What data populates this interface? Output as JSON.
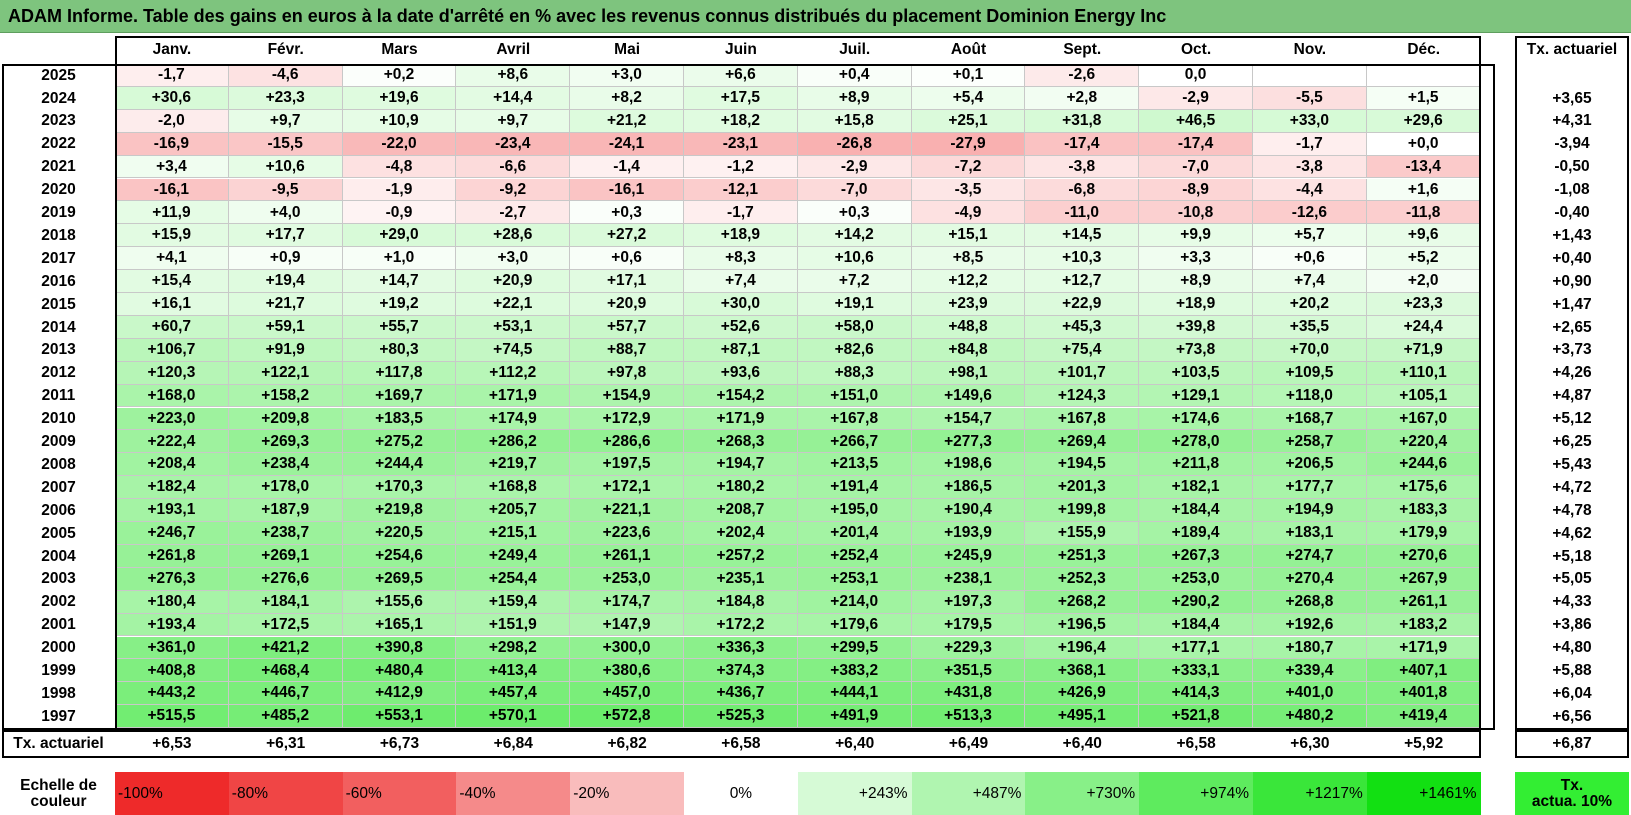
{
  "title": "ADAM Informe. Table des gains en euros à la date d'arrêté en % avec les revenus connus distribués du placement Dominion Energy Inc",
  "chart_data": {
    "type": "table",
    "columns": [
      "Janv.",
      "Févr.",
      "Mars",
      "Avril",
      "Mai",
      "Juin",
      "Juil.",
      "Août",
      "Sept.",
      "Oct.",
      "Nov.",
      "Déc."
    ],
    "ta_header": "Tx. actuariel",
    "rows": [
      {
        "year": "2025",
        "values": [
          "-1,7",
          "-4,6",
          "+0,2",
          "+8,6",
          "+3,0",
          "+6,6",
          "+0,4",
          "+0,1",
          "-2,6",
          "0,0",
          "",
          ""
        ],
        "ta": ""
      },
      {
        "year": "2024",
        "values": [
          "+30,6",
          "+23,3",
          "+19,6",
          "+14,4",
          "+8,2",
          "+17,5",
          "+8,9",
          "+5,4",
          "+2,8",
          "-2,9",
          "-5,5",
          "+1,5"
        ],
        "ta": "+3,65"
      },
      {
        "year": "2023",
        "values": [
          "-2,0",
          "+9,7",
          "+10,9",
          "+9,7",
          "+21,2",
          "+18,2",
          "+15,8",
          "+25,1",
          "+31,8",
          "+46,5",
          "+33,0",
          "+29,6"
        ],
        "ta": "+4,31"
      },
      {
        "year": "2022",
        "values": [
          "-16,9",
          "-15,5",
          "-22,0",
          "-23,4",
          "-24,1",
          "-23,1",
          "-26,8",
          "-27,9",
          "-17,4",
          "-17,4",
          "-1,7",
          "+0,0"
        ],
        "ta": "-3,94"
      },
      {
        "year": "2021",
        "values": [
          "+3,4",
          "+10,6",
          "-4,8",
          "-6,6",
          "-1,4",
          "-1,2",
          "-2,9",
          "-7,2",
          "-3,8",
          "-7,0",
          "-3,8",
          "-13,4"
        ],
        "ta": "-0,50"
      },
      {
        "year": "2020",
        "values": [
          "-16,1",
          "-9,5",
          "-1,9",
          "-9,2",
          "-16,1",
          "-12,1",
          "-7,0",
          "-3,5",
          "-6,8",
          "-8,9",
          "-4,4",
          "+1,6"
        ],
        "ta": "-1,08"
      },
      {
        "year": "2019",
        "values": [
          "+11,9",
          "+4,0",
          "-0,9",
          "-2,7",
          "+0,3",
          "-1,7",
          "+0,3",
          "-4,9",
          "-11,0",
          "-10,8",
          "-12,6",
          "-11,8"
        ],
        "ta": "-0,40"
      },
      {
        "year": "2018",
        "values": [
          "+15,9",
          "+17,7",
          "+29,0",
          "+28,6",
          "+27,2",
          "+18,9",
          "+14,2",
          "+15,1",
          "+14,5",
          "+9,9",
          "+5,7",
          "+9,6"
        ],
        "ta": "+1,43"
      },
      {
        "year": "2017",
        "values": [
          "+4,1",
          "+0,9",
          "+1,0",
          "+3,0",
          "+0,6",
          "+8,3",
          "+10,6",
          "+8,5",
          "+10,3",
          "+3,3",
          "+0,6",
          "+5,2"
        ],
        "ta": "+0,40"
      },
      {
        "year": "2016",
        "values": [
          "+15,4",
          "+19,4",
          "+14,7",
          "+20,9",
          "+17,1",
          "+7,4",
          "+7,2",
          "+12,2",
          "+12,7",
          "+8,9",
          "+7,4",
          "+2,0"
        ],
        "ta": "+0,90"
      },
      {
        "year": "2015",
        "values": [
          "+16,1",
          "+21,7",
          "+19,2",
          "+22,1",
          "+20,9",
          "+30,0",
          "+19,1",
          "+23,9",
          "+22,9",
          "+18,9",
          "+20,2",
          "+23,3"
        ],
        "ta": "+1,47"
      },
      {
        "year": "2014",
        "values": [
          "+60,7",
          "+59,1",
          "+55,7",
          "+53,1",
          "+57,7",
          "+52,6",
          "+58,0",
          "+48,8",
          "+45,3",
          "+39,8",
          "+35,5",
          "+24,4"
        ],
        "ta": "+2,65"
      },
      {
        "year": "2013",
        "values": [
          "+106,7",
          "+91,9",
          "+80,3",
          "+74,5",
          "+88,7",
          "+87,1",
          "+82,6",
          "+84,8",
          "+75,4",
          "+73,8",
          "+70,0",
          "+71,9"
        ],
        "ta": "+3,73"
      },
      {
        "year": "2012",
        "values": [
          "+120,3",
          "+122,1",
          "+117,8",
          "+112,2",
          "+97,8",
          "+93,6",
          "+88,3",
          "+98,1",
          "+101,7",
          "+103,5",
          "+109,5",
          "+110,1"
        ],
        "ta": "+4,26"
      },
      {
        "year": "2011",
        "values": [
          "+168,0",
          "+158,2",
          "+169,7",
          "+171,9",
          "+154,9",
          "+154,2",
          "+151,0",
          "+149,6",
          "+124,3",
          "+129,1",
          "+118,0",
          "+105,1"
        ],
        "ta": "+4,87"
      },
      {
        "year": "2010",
        "values": [
          "+223,0",
          "+209,8",
          "+183,5",
          "+174,9",
          "+172,9",
          "+171,9",
          "+167,8",
          "+154,7",
          "+167,8",
          "+174,6",
          "+168,7",
          "+167,0"
        ],
        "ta": "+5,12"
      },
      {
        "year": "2009",
        "values": [
          "+222,4",
          "+269,3",
          "+275,2",
          "+286,2",
          "+286,6",
          "+268,3",
          "+266,7",
          "+277,3",
          "+269,4",
          "+278,0",
          "+258,7",
          "+220,4"
        ],
        "ta": "+6,25"
      },
      {
        "year": "2008",
        "values": [
          "+208,4",
          "+238,4",
          "+244,4",
          "+219,7",
          "+197,5",
          "+194,7",
          "+213,5",
          "+198,6",
          "+194,5",
          "+211,8",
          "+206,5",
          "+244,6"
        ],
        "ta": "+5,43"
      },
      {
        "year": "2007",
        "values": [
          "+182,4",
          "+178,0",
          "+170,3",
          "+168,8",
          "+172,1",
          "+180,2",
          "+191,4",
          "+186,5",
          "+201,3",
          "+182,1",
          "+177,7",
          "+175,6"
        ],
        "ta": "+4,72"
      },
      {
        "year": "2006",
        "values": [
          "+193,1",
          "+187,9",
          "+219,8",
          "+205,7",
          "+221,1",
          "+208,7",
          "+195,0",
          "+190,4",
          "+199,8",
          "+184,4",
          "+194,9",
          "+183,3"
        ],
        "ta": "+4,78"
      },
      {
        "year": "2005",
        "values": [
          "+246,7",
          "+238,7",
          "+220,5",
          "+215,1",
          "+223,6",
          "+202,4",
          "+201,4",
          "+193,9",
          "+155,9",
          "+189,4",
          "+183,1",
          "+179,9"
        ],
        "ta": "+4,62"
      },
      {
        "year": "2004",
        "values": [
          "+261,8",
          "+269,1",
          "+254,6",
          "+249,4",
          "+261,1",
          "+257,2",
          "+252,4",
          "+245,9",
          "+251,3",
          "+267,3",
          "+274,7",
          "+270,6"
        ],
        "ta": "+5,18"
      },
      {
        "year": "2003",
        "values": [
          "+276,3",
          "+276,6",
          "+269,5",
          "+254,4",
          "+253,0",
          "+235,1",
          "+253,1",
          "+238,1",
          "+252,3",
          "+253,0",
          "+270,4",
          "+267,9"
        ],
        "ta": "+5,05"
      },
      {
        "year": "2002",
        "values": [
          "+180,4",
          "+184,1",
          "+155,6",
          "+159,4",
          "+174,7",
          "+184,8",
          "+214,0",
          "+197,3",
          "+268,2",
          "+290,2",
          "+268,8",
          "+261,1"
        ],
        "ta": "+4,33"
      },
      {
        "year": "2001",
        "values": [
          "+193,4",
          "+172,5",
          "+165,1",
          "+151,9",
          "+147,9",
          "+172,2",
          "+179,6",
          "+179,5",
          "+196,5",
          "+184,4",
          "+192,6",
          "+183,2"
        ],
        "ta": "+3,86"
      },
      {
        "year": "2000",
        "values": [
          "+361,0",
          "+421,2",
          "+390,8",
          "+298,2",
          "+300,0",
          "+336,3",
          "+299,5",
          "+229,3",
          "+196,4",
          "+177,1",
          "+180,7",
          "+171,9"
        ],
        "ta": "+4,80"
      },
      {
        "year": "1999",
        "values": [
          "+408,8",
          "+468,4",
          "+480,4",
          "+413,4",
          "+380,6",
          "+374,3",
          "+383,2",
          "+351,5",
          "+368,1",
          "+333,1",
          "+339,4",
          "+407,1"
        ],
        "ta": "+5,88"
      },
      {
        "year": "1998",
        "values": [
          "+443,2",
          "+446,7",
          "+412,9",
          "+457,4",
          "+457,0",
          "+436,7",
          "+444,1",
          "+431,8",
          "+426,9",
          "+414,3",
          "+401,0",
          "+401,8"
        ],
        "ta": "+6,04"
      },
      {
        "year": "1997",
        "values": [
          "+515,5",
          "+485,2",
          "+553,1",
          "+570,1",
          "+572,8",
          "+525,3",
          "+491,9",
          "+513,3",
          "+495,1",
          "+521,8",
          "+480,2",
          "+419,4"
        ],
        "ta": "+6,56"
      }
    ],
    "footer": {
      "label": "Tx. actuariel",
      "values": [
        "+6,53",
        "+6,31",
        "+6,73",
        "+6,84",
        "+6,82",
        "+6,58",
        "+6,40",
        "+6,49",
        "+6,40",
        "+6,58",
        "+6,30",
        "+5,92"
      ],
      "ta": "+6,87"
    }
  },
  "scale": {
    "label_line1": "Echelle de",
    "label_line2": "couleur",
    "items": [
      {
        "label": "-100%",
        "color": "#ee2a2a"
      },
      {
        "label": "-80%",
        "color": "#f04545"
      },
      {
        "label": "-60%",
        "color": "#f25f5f"
      },
      {
        "label": "-40%",
        "color": "#f58a8a"
      },
      {
        "label": "-20%",
        "color": "#f9bcbc"
      },
      {
        "label": "0%",
        "color": "#ffffff"
      },
      {
        "label": "+243%",
        "color": "#d6fad6"
      },
      {
        "label": "+487%",
        "color": "#b0f5b0"
      },
      {
        "label": "+730%",
        "color": "#88f088"
      },
      {
        "label": "+974%",
        "color": "#5eeb5e"
      },
      {
        "label": "+1217%",
        "color": "#3ae63a"
      },
      {
        "label": "+1461%",
        "color": "#12e012"
      }
    ],
    "ta_line1": "Tx.",
    "ta_line2": "actua. 10%",
    "ta_color": "#33ee33"
  },
  "colors": {
    "title_bg": "#7ec47e",
    "negative": "#f25f5f",
    "positive": "#12e012"
  }
}
